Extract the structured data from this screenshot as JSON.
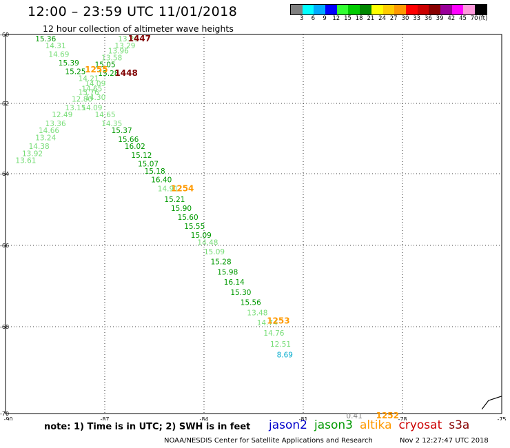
{
  "header": {
    "title": "12:00 – 23:59 UTC 11/01/2018",
    "subtitle": "12 hour collection of altimeter wave heights"
  },
  "colorbar": {
    "colors": [
      "#808080",
      "#00ffff",
      "#00aaff",
      "#0000ff",
      "#33ff33",
      "#00cc00",
      "#008800",
      "#ffff00",
      "#ffcc00",
      "#ff9900",
      "#ff0000",
      "#cc0000",
      "#880000",
      "#990099",
      "#ff00ff",
      "#ff99dd",
      "#000000"
    ],
    "labels": [
      "3",
      "6",
      "9",
      "12",
      "15",
      "18",
      "21",
      "24",
      "27",
      "30",
      "33",
      "36",
      "39",
      "42",
      "45",
      "70",
      "(ft)"
    ]
  },
  "map": {
    "lon_range": [
      -90,
      -75
    ],
    "lat_range": [
      -70,
      -60
    ],
    "lon_ticks": [
      "-90",
      "-87",
      "-84",
      "-81",
      "-78",
      "-75"
    ],
    "lat_ticks": [
      "-60",
      "-62",
      "-64",
      "-66",
      "-68",
      "-70"
    ],
    "wave_heights": [
      {
        "text": "13.29",
        "lon": -86.6,
        "lat": -60.0,
        "color": "#77dd77"
      },
      {
        "text": "15.36",
        "lon": -89.1,
        "lat": -60.0,
        "color": "#009900"
      },
      {
        "text": "13.29",
        "lon": -86.7,
        "lat": -60.2,
        "color": "#77dd77"
      },
      {
        "text": "14.31",
        "lon": -88.8,
        "lat": -60.2,
        "color": "#77dd77"
      },
      {
        "text": "13.96",
        "lon": -86.9,
        "lat": -60.35,
        "color": "#77dd77"
      },
      {
        "text": "14.69",
        "lon": -88.7,
        "lat": -60.45,
        "color": "#77dd77"
      },
      {
        "text": "13.58",
        "lon": -87.1,
        "lat": -60.55,
        "color": "#77dd77"
      },
      {
        "text": "15.39",
        "lon": -88.4,
        "lat": -60.7,
        "color": "#009900"
      },
      {
        "text": "15.05",
        "lon": -87.3,
        "lat": -60.75,
        "color": "#009900"
      },
      {
        "text": "15.25",
        "lon": -88.2,
        "lat": -60.95,
        "color": "#009900"
      },
      {
        "text": "15.28",
        "lon": -87.2,
        "lat": -61.0,
        "color": "#009900"
      },
      {
        "text": "14.21",
        "lon": -87.8,
        "lat": -61.15,
        "color": "#77dd77"
      },
      {
        "text": "14.09",
        "lon": -87.6,
        "lat": -61.3,
        "color": "#77dd77"
      },
      {
        "text": "14.65",
        "lon": -87.7,
        "lat": -61.45,
        "color": "#77dd77"
      },
      {
        "text": "13.76",
        "lon": -87.8,
        "lat": -61.55,
        "color": "#77dd77"
      },
      {
        "text": "14.30",
        "lon": -87.6,
        "lat": -61.7,
        "color": "#77dd77"
      },
      {
        "text": "12.80",
        "lon": -88.0,
        "lat": -61.75,
        "color": "#77dd77"
      },
      {
        "text": "13.15",
        "lon": -88.2,
        "lat": -62.0,
        "color": "#77dd77"
      },
      {
        "text": "14.09",
        "lon": -87.7,
        "lat": -62.0,
        "color": "#77dd77"
      },
      {
        "text": "12.49",
        "lon": -88.6,
        "lat": -62.2,
        "color": "#77dd77"
      },
      {
        "text": "14.65",
        "lon": -87.3,
        "lat": -62.2,
        "color": "#77dd77"
      },
      {
        "text": "13.36",
        "lon": -88.8,
        "lat": -62.45,
        "color": "#77dd77"
      },
      {
        "text": "14.35",
        "lon": -87.1,
        "lat": -62.45,
        "color": "#77dd77"
      },
      {
        "text": "14.66",
        "lon": -89.0,
        "lat": -62.65,
        "color": "#77dd77"
      },
      {
        "text": "15.37",
        "lon": -86.8,
        "lat": -62.65,
        "color": "#009900"
      },
      {
        "text": "13.24",
        "lon": -89.1,
        "lat": -62.85,
        "color": "#77dd77"
      },
      {
        "text": "15.66",
        "lon": -86.6,
        "lat": -62.9,
        "color": "#009900"
      },
      {
        "text": "14.38",
        "lon": -89.3,
        "lat": -63.1,
        "color": "#77dd77"
      },
      {
        "text": "16.02",
        "lon": -86.4,
        "lat": -63.1,
        "color": "#009900"
      },
      {
        "text": "13.92",
        "lon": -89.5,
        "lat": -63.3,
        "color": "#77dd77"
      },
      {
        "text": "15.12",
        "lon": -86.2,
        "lat": -63.35,
        "color": "#009900"
      },
      {
        "text": "13.61",
        "lon": -89.7,
        "lat": -63.5,
        "color": "#77dd77"
      },
      {
        "text": "15.07",
        "lon": -86.0,
        "lat": -63.6,
        "color": "#009900"
      },
      {
        "text": "15.18",
        "lon": -85.8,
        "lat": -63.8,
        "color": "#009900"
      },
      {
        "text": "16.40",
        "lon": -85.6,
        "lat": -64.05,
        "color": "#009900"
      },
      {
        "text": "14.91",
        "lon": -85.4,
        "lat": -64.3,
        "color": "#77dd77"
      },
      {
        "text": "15.21",
        "lon": -85.2,
        "lat": -64.6,
        "color": "#009900"
      },
      {
        "text": "15.90",
        "lon": -85.0,
        "lat": -64.85,
        "color": "#009900"
      },
      {
        "text": "15.60",
        "lon": -84.8,
        "lat": -65.1,
        "color": "#009900"
      },
      {
        "text": "15.55",
        "lon": -84.6,
        "lat": -65.35,
        "color": "#009900"
      },
      {
        "text": "15.09",
        "lon": -84.4,
        "lat": -65.6,
        "color": "#009900"
      },
      {
        "text": "14.48",
        "lon": -84.2,
        "lat": -65.8,
        "color": "#77dd77"
      },
      {
        "text": "15.09",
        "lon": -84.0,
        "lat": -66.05,
        "color": "#77dd77"
      },
      {
        "text": "15.28",
        "lon": -83.8,
        "lat": -66.3,
        "color": "#009900"
      },
      {
        "text": "15.98",
        "lon": -83.6,
        "lat": -66.55,
        "color": "#009900"
      },
      {
        "text": "16.14",
        "lon": -83.4,
        "lat": -66.8,
        "color": "#009900"
      },
      {
        "text": "15.30",
        "lon": -83.2,
        "lat": -67.05,
        "color": "#009900"
      },
      {
        "text": "15.56",
        "lon": -82.9,
        "lat": -67.3,
        "color": "#009900"
      },
      {
        "text": "13.48",
        "lon": -82.7,
        "lat": -67.55,
        "color": "#77dd77"
      },
      {
        "text": "14.74",
        "lon": -82.4,
        "lat": -67.8,
        "color": "#77dd77"
      },
      {
        "text": "14.76",
        "lon": -82.2,
        "lat": -68.05,
        "color": "#77dd77"
      },
      {
        "text": "12.51",
        "lon": -82.0,
        "lat": -68.3,
        "color": "#77dd77"
      },
      {
        "text": "8.69",
        "lon": -81.8,
        "lat": -68.55,
        "color": "#00aacc"
      },
      {
        "text": "0.41",
        "lon": -79.7,
        "lat": -69.95,
        "color": "#808080"
      }
    ],
    "pass_times": [
      {
        "text": "1447",
        "lon": -86.3,
        "lat": -60.0,
        "color": "#800000"
      },
      {
        "text": "1448",
        "lon": -86.7,
        "lat": -61.0,
        "color": "#800000"
      },
      {
        "text": "1255",
        "lon": -87.6,
        "lat": -60.9,
        "color": "#ff9900"
      },
      {
        "text": "1254",
        "lon": -85.0,
        "lat": -64.3,
        "color": "#ff9900"
      },
      {
        "text": "1253",
        "lon": -82.1,
        "lat": -67.75,
        "color": "#ff9900"
      },
      {
        "text": "1252",
        "lon": -78.8,
        "lat": -69.95,
        "color": "#ff9900"
      }
    ]
  },
  "footer": {
    "note": "note: 1) Time is in UTC; 2) SWH is in feet",
    "legend": [
      {
        "name": "jason2",
        "color": "#0000cc"
      },
      {
        "name": "jason3",
        "color": "#009900"
      },
      {
        "name": "altika",
        "color": "#ff9900"
      },
      {
        "name": "cryosat",
        "color": "#cc0000"
      },
      {
        "name": "s3a",
        "color": "#880000"
      }
    ],
    "credit": "NOAA/NESDIS Center for Satellite Applications and Research",
    "timestamp": "Nov  2 12:27:47 UTC 2018"
  }
}
